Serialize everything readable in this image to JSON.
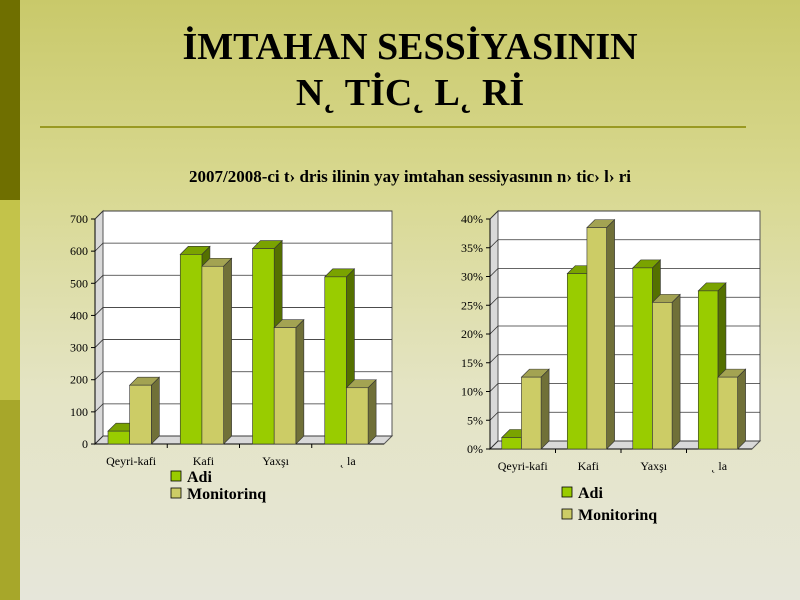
{
  "slide": {
    "title_line1": "İMTAHAN SESSİYASININ",
    "title_line2": "N˛ TİC˛ L˛ Rİ",
    "subtitle": "2007/2008-ci t› dris ilinin yay imtahan sessiyasının n› tic› l› ri"
  },
  "colors": {
    "series_adi": "#99cc00",
    "series_monitoring": "#cccc66"
  },
  "chart_data": [
    {
      "type": "bar",
      "title": "",
      "categories": [
        "Qeyri-kafi",
        "Kafi",
        "Yaxşı",
        "˛ la"
      ],
      "series": [
        {
          "name": "Adi",
          "values": [
            40,
            590,
            608,
            520
          ]
        },
        {
          "name": "Monitorinq",
          "values": [
            183,
            553,
            362,
            175
          ]
        }
      ],
      "ylim": [
        0,
        700
      ],
      "yticks": [
        "0",
        "100",
        "200",
        "300",
        "400",
        "500",
        "600",
        "700"
      ],
      "legend": "bottom",
      "grid": true,
      "three_d": true
    },
    {
      "type": "bar",
      "title": "",
      "categories": [
        "Qeyri-kafi",
        "Kafi",
        "Yaxşı",
        "˛ la"
      ],
      "series": [
        {
          "name": "Adi",
          "values": [
            2,
            30.5,
            31.5,
            27.5
          ]
        },
        {
          "name": "Monitorinq",
          "values": [
            12.5,
            38.5,
            25.5,
            12.5
          ]
        }
      ],
      "ylim": [
        0,
        40
      ],
      "yticks": [
        "0%",
        "5%",
        "10%",
        "15%",
        "20%",
        "25%",
        "30%",
        "35%",
        "40%"
      ],
      "legend": "bottom",
      "grid": true,
      "three_d": true
    }
  ]
}
